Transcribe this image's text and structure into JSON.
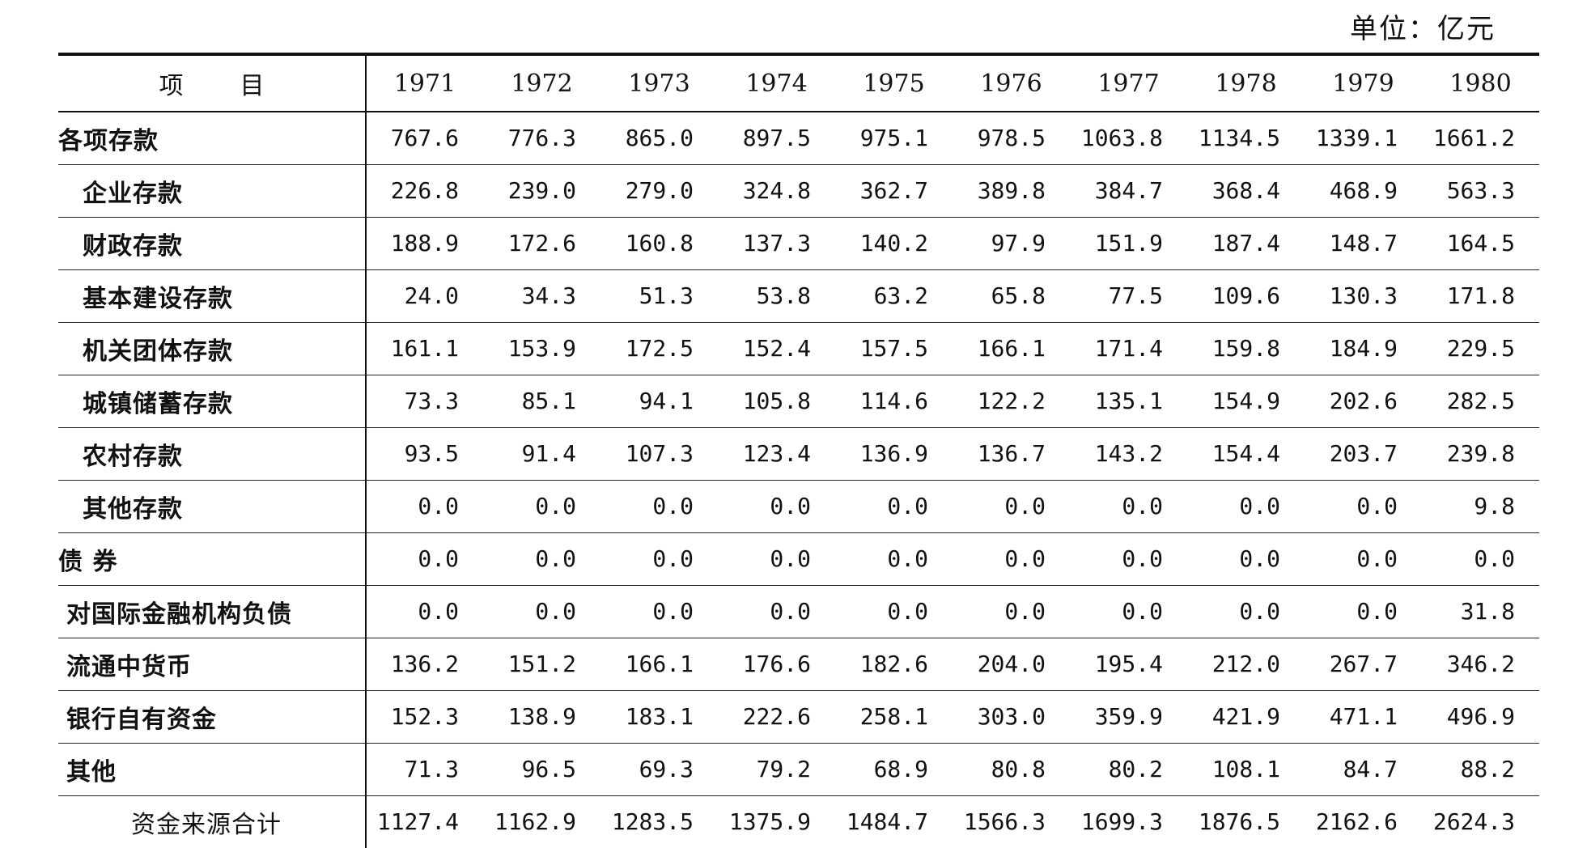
{
  "unit_label": "单位：亿元",
  "table": {
    "header_label": "项目",
    "years": [
      "1971",
      "1972",
      "1973",
      "1974",
      "1975",
      "1976",
      "1977",
      "1978",
      "1979",
      "1980"
    ],
    "rows": [
      {
        "label": "各项存款",
        "level": 0,
        "values": [
          "767.6",
          "776.3",
          "865.0",
          "897.5",
          "975.1",
          "978.5",
          "1063.8",
          "1134.5",
          "1339.1",
          "1661.2"
        ]
      },
      {
        "label": "企业存款",
        "level": 1,
        "values": [
          "226.8",
          "239.0",
          "279.0",
          "324.8",
          "362.7",
          "389.8",
          "384.7",
          "368.4",
          "468.9",
          "563.3"
        ]
      },
      {
        "label": "财政存款",
        "level": 1,
        "values": [
          "188.9",
          "172.6",
          "160.8",
          "137.3",
          "140.2",
          "97.9",
          "151.9",
          "187.4",
          "148.7",
          "164.5"
        ]
      },
      {
        "label": "基本建设存款",
        "level": 1,
        "values": [
          "24.0",
          "34.3",
          "51.3",
          "53.8",
          "63.2",
          "65.8",
          "77.5",
          "109.6",
          "130.3",
          "171.8"
        ]
      },
      {
        "label": "机关团体存款",
        "level": 1,
        "values": [
          "161.1",
          "153.9",
          "172.5",
          "152.4",
          "157.5",
          "166.1",
          "171.4",
          "159.8",
          "184.9",
          "229.5"
        ]
      },
      {
        "label": "城镇储蓄存款",
        "level": 1,
        "values": [
          "73.3",
          "85.1",
          "94.1",
          "105.8",
          "114.6",
          "122.2",
          "135.1",
          "154.9",
          "202.6",
          "282.5"
        ]
      },
      {
        "label": "农村存款",
        "level": 1,
        "values": [
          "93.5",
          "91.4",
          "107.3",
          "123.4",
          "136.9",
          "136.7",
          "143.2",
          "154.4",
          "203.7",
          "239.8"
        ]
      },
      {
        "label": "其他存款",
        "level": 1,
        "values": [
          "0.0",
          "0.0",
          "0.0",
          "0.0",
          "0.0",
          "0.0",
          "0.0",
          "0.0",
          "0.0",
          "9.8"
        ]
      },
      {
        "label": "债 券",
        "level": 0,
        "values": [
          "0.0",
          "0.0",
          "0.0",
          "0.0",
          "0.0",
          "0.0",
          "0.0",
          "0.0",
          "0.0",
          "0.0"
        ]
      },
      {
        "label": "对国际金融机构负债",
        "level": 2,
        "values": [
          "0.0",
          "0.0",
          "0.0",
          "0.0",
          "0.0",
          "0.0",
          "0.0",
          "0.0",
          "0.0",
          "31.8"
        ]
      },
      {
        "label": "流通中货币",
        "level": 2,
        "values": [
          "136.2",
          "151.2",
          "166.1",
          "176.6",
          "182.6",
          "204.0",
          "195.4",
          "212.0",
          "267.7",
          "346.2"
        ]
      },
      {
        "label": "银行自有资金",
        "level": 2,
        "values": [
          "152.3",
          "138.9",
          "183.1",
          "222.6",
          "258.1",
          "303.0",
          "359.9",
          "421.9",
          "471.1",
          "496.9"
        ]
      },
      {
        "label": "其他",
        "level": 2,
        "values": [
          "71.3",
          "96.5",
          "69.3",
          "79.2",
          "68.9",
          "80.8",
          "80.2",
          "108.1",
          "84.7",
          "88.2"
        ]
      },
      {
        "label": "资金来源合计",
        "level": 3,
        "values": [
          "1127.4",
          "1162.9",
          "1283.5",
          "1375.9",
          "1484.7",
          "1566.3",
          "1699.3",
          "1876.5",
          "2162.6",
          "2624.3"
        ]
      }
    ]
  }
}
